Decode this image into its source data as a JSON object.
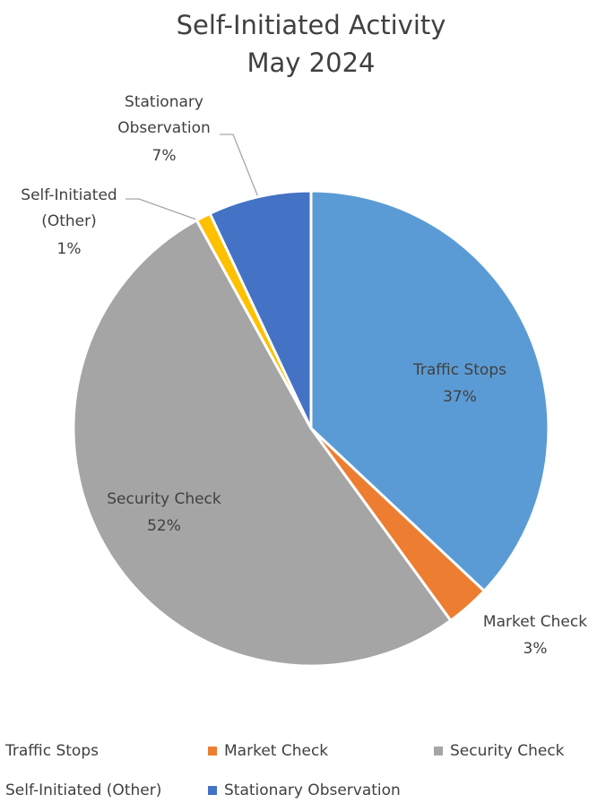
{
  "chart_data": {
    "type": "pie",
    "title": "Self-Initiated Activity",
    "subtitle": "May 2024",
    "categories": [
      "Traffic Stops",
      "Market Check",
      "Security Check",
      "Self-Initiated (Other)",
      "Stationary Observation"
    ],
    "values": [
      37,
      3,
      52,
      1,
      7
    ],
    "value_labels": [
      "37%",
      "3%",
      "52%",
      "1%",
      "7%"
    ],
    "colors": [
      "#5b9bd5",
      "#ed7d31",
      "#a5a5a5",
      "#ffc000",
      "#4472c4"
    ],
    "legend": "bottom"
  }
}
